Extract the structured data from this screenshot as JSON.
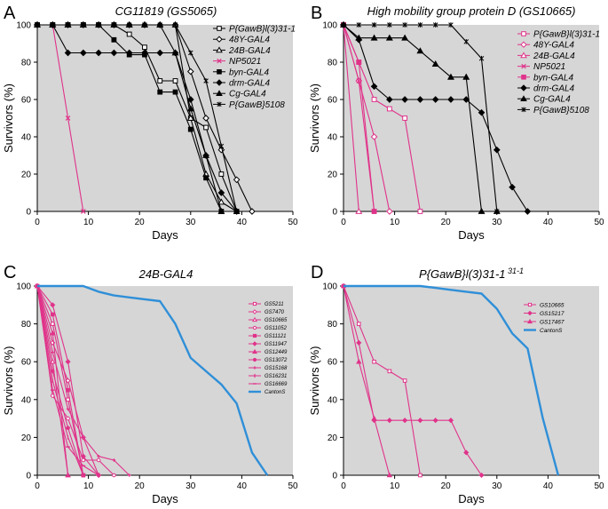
{
  "chart_data": [
    {
      "type": "line",
      "panel_letter": "A",
      "title": "CG11819 (GS5065)",
      "xlabel": "Days",
      "ylabel": "Survivors (%)",
      "xlim": [
        0,
        50
      ],
      "ylim": [
        0,
        100
      ],
      "x_ticks": [
        0,
        10,
        20,
        30,
        40,
        50
      ],
      "y_ticks": [
        0,
        20,
        40,
        60,
        80,
        100
      ],
      "legend": "top-right",
      "series": [
        {
          "name": "P{GawB}l(3)31-1",
          "color": "#000000",
          "marker": "square-open",
          "x": [
            0,
            3,
            6,
            9,
            12,
            15,
            18,
            21,
            24,
            27,
            30,
            33,
            36,
            39
          ],
          "y": [
            100,
            100,
            100,
            100,
            100,
            100,
            95,
            88,
            70,
            70,
            50,
            45,
            20,
            0
          ]
        },
        {
          "name": "48Y-GAL4",
          "color": "#000000",
          "marker": "diamond-open",
          "x": [
            0,
            3,
            6,
            9,
            12,
            15,
            18,
            21,
            24,
            27,
            30,
            33,
            36,
            39,
            42
          ],
          "y": [
            100,
            100,
            100,
            100,
            100,
            100,
            100,
            100,
            100,
            100,
            75,
            50,
            33,
            17,
            0
          ]
        },
        {
          "name": "24B-GAL4",
          "color": "#000000",
          "marker": "triangle-open",
          "x": [
            0,
            3,
            6,
            9,
            12,
            15,
            18,
            21,
            24,
            27,
            30,
            33,
            36,
            39
          ],
          "y": [
            100,
            100,
            100,
            100,
            100,
            100,
            100,
            100,
            100,
            100,
            50,
            20,
            5,
            0
          ]
        },
        {
          "name": "NP5021",
          "color": "#e0338a",
          "marker": "x",
          "x": [
            0,
            3,
            6,
            9
          ],
          "y": [
            100,
            100,
            50,
            0
          ]
        },
        {
          "name": "byn-GAL4",
          "color": "#000000",
          "marker": "square-filled",
          "x": [
            0,
            3,
            6,
            9,
            12,
            15,
            18,
            21,
            24,
            27,
            30,
            33,
            36
          ],
          "y": [
            100,
            100,
            100,
            100,
            100,
            92,
            84,
            84,
            64,
            64,
            44,
            18,
            0
          ]
        },
        {
          "name": "drm-GAL4",
          "color": "#000000",
          "marker": "diamond-filled",
          "x": [
            0,
            3,
            6,
            9,
            12,
            15,
            18,
            21,
            24,
            27,
            30,
            33,
            36,
            39
          ],
          "y": [
            100,
            100,
            85,
            85,
            85,
            85,
            85,
            85,
            85,
            85,
            60,
            30,
            10,
            0
          ]
        },
        {
          "name": "Cg-GAL4",
          "color": "#000000",
          "marker": "triangle-filled",
          "x": [
            0,
            3,
            6,
            9,
            12,
            15,
            18,
            21,
            24,
            27,
            30,
            33,
            36
          ],
          "y": [
            100,
            100,
            100,
            100,
            100,
            100,
            100,
            100,
            100,
            85,
            55,
            30,
            0
          ]
        },
        {
          "name": "P{GawB}5108",
          "color": "#000000",
          "marker": "asterisk",
          "x": [
            0,
            3,
            6,
            9,
            12,
            15,
            18,
            21,
            24,
            27,
            30,
            33,
            36,
            39
          ],
          "y": [
            100,
            100,
            100,
            100,
            100,
            100,
            100,
            100,
            100,
            100,
            85,
            70,
            35,
            0
          ]
        }
      ]
    },
    {
      "type": "line",
      "panel_letter": "B",
      "title": "High mobility group protein D (GS10665)",
      "xlabel": "Days",
      "ylabel": "Survivors (%)",
      "xlim": [
        0,
        50
      ],
      "ylim": [
        0,
        100
      ],
      "x_ticks": [
        0,
        10,
        20,
        30,
        40,
        50
      ],
      "y_ticks": [
        0,
        20,
        40,
        60,
        80,
        100
      ],
      "legend": "top-right",
      "series": [
        {
          "name": "P{GawB}l(3)31-1",
          "color": "#e0338a",
          "marker": "square-open",
          "x": [
            0,
            3,
            6,
            9,
            12,
            15
          ],
          "y": [
            100,
            80,
            60,
            55,
            50,
            0
          ]
        },
        {
          "name": "48Y-GAL4",
          "color": "#e0338a",
          "marker": "diamond-open",
          "x": [
            0,
            3,
            6,
            9
          ],
          "y": [
            100,
            70,
            40,
            0
          ]
        },
        {
          "name": "24B-GAL4",
          "color": "#e0338a",
          "marker": "triangle-open",
          "x": [
            0,
            3
          ],
          "y": [
            100,
            0
          ]
        },
        {
          "name": "NP5021",
          "color": "#e0338a",
          "marker": "x",
          "x": [
            0,
            3,
            6
          ],
          "y": [
            100,
            70,
            0
          ]
        },
        {
          "name": "byn-GAL4",
          "color": "#e0338a",
          "marker": "square-filled",
          "x": [
            0,
            3,
            6
          ],
          "y": [
            100,
            80,
            0
          ]
        },
        {
          "name": "drm-GAL4",
          "color": "#000000",
          "marker": "diamond-filled",
          "x": [
            0,
            3,
            6,
            9,
            12,
            15,
            18,
            21,
            24,
            27,
            30,
            33,
            36
          ],
          "y": [
            100,
            92,
            67,
            60,
            60,
            60,
            60,
            60,
            60,
            53,
            33,
            13,
            0
          ]
        },
        {
          "name": "Cg-GAL4",
          "color": "#000000",
          "marker": "triangle-filled",
          "x": [
            0,
            3,
            6,
            9,
            12,
            15,
            18,
            21,
            24,
            27,
            30
          ],
          "y": [
            100,
            93,
            93,
            93,
            93,
            86,
            79,
            72,
            72,
            0,
            0
          ]
        },
        {
          "name": "P{GawB}5108",
          "color": "#000000",
          "marker": "asterisk",
          "x": [
            0,
            3,
            6,
            9,
            12,
            15,
            18,
            21,
            24,
            27,
            30
          ],
          "y": [
            100,
            100,
            100,
            100,
            100,
            100,
            100,
            100,
            91,
            82,
            0
          ]
        }
      ]
    },
    {
      "type": "line",
      "panel_letter": "C",
      "title": "24B-GAL4",
      "xlabel": "Days",
      "ylabel": "Survivors (%)",
      "xlim": [
        0,
        50
      ],
      "ylim": [
        0,
        100
      ],
      "x_ticks": [
        0,
        10,
        20,
        30,
        40,
        50
      ],
      "y_ticks": [
        0,
        20,
        40,
        60,
        80,
        100
      ],
      "legend": "top-right",
      "series": [
        {
          "name": "GS5211",
          "color": "#e0338a",
          "marker": "square-open",
          "x": [
            0,
            3,
            6,
            9
          ],
          "y": [
            100,
            80,
            40,
            0
          ]
        },
        {
          "name": "GS7470",
          "color": "#e0338a",
          "marker": "diamond-open",
          "x": [
            0,
            3,
            6,
            9,
            12
          ],
          "y": [
            100,
            70,
            50,
            20,
            0
          ]
        },
        {
          "name": "GS10665",
          "color": "#e0338a",
          "marker": "triangle-open",
          "x": [
            0,
            3,
            6
          ],
          "y": [
            100,
            60,
            0
          ]
        },
        {
          "name": "GS11052",
          "color": "#e0338a",
          "marker": "circle-open",
          "x": [
            0,
            3,
            6,
            9,
            12,
            15
          ],
          "y": [
            100,
            42,
            30,
            8,
            8,
            0
          ]
        },
        {
          "name": "GS11121",
          "color": "#e0338a",
          "marker": "square-filled",
          "x": [
            0,
            3,
            6,
            9
          ],
          "y": [
            100,
            85,
            45,
            0
          ]
        },
        {
          "name": "GS11947",
          "color": "#e0338a",
          "marker": "diamond-filled",
          "x": [
            0,
            3,
            6,
            9,
            12
          ],
          "y": [
            100,
            90,
            60,
            10,
            0
          ]
        },
        {
          "name": "GS12449",
          "color": "#e0338a",
          "marker": "triangle-filled",
          "x": [
            0,
            3,
            6
          ],
          "y": [
            100,
            75,
            0
          ]
        },
        {
          "name": "GS13072",
          "color": "#e0338a",
          "marker": "circle-filled",
          "x": [
            0,
            3,
            6,
            9
          ],
          "y": [
            100,
            55,
            25,
            0
          ]
        },
        {
          "name": "GS15168",
          "color": "#e0338a",
          "marker": "plus",
          "x": [
            0,
            3,
            6,
            9,
            12,
            15,
            18
          ],
          "y": [
            100,
            65,
            35,
            20,
            10,
            8,
            0
          ]
        },
        {
          "name": "GS16231",
          "color": "#e0338a",
          "marker": "bar",
          "x": [
            0,
            3,
            6,
            9
          ],
          "y": [
            100,
            50,
            20,
            0
          ]
        },
        {
          "name": "GS16669",
          "color": "#e0338a",
          "marker": "dash",
          "x": [
            0,
            3,
            6,
            9,
            12
          ],
          "y": [
            100,
            45,
            15,
            5,
            0
          ]
        },
        {
          "name": "CantonS",
          "color": "#2f8fd8",
          "marker": "none",
          "x": [
            0,
            6,
            9,
            12,
            15,
            18,
            21,
            24,
            27,
            30,
            33,
            36,
            39,
            42,
            45
          ],
          "y": [
            100,
            100,
            100,
            97,
            95,
            94,
            93,
            92,
            80,
            62,
            55,
            48,
            38,
            12,
            0
          ]
        }
      ]
    },
    {
      "type": "line",
      "panel_letter": "D",
      "title": "P{GawB}l(3)31-1 31-1",
      "xlabel": "Days",
      "ylabel": "Survivors (%)",
      "xlim": [
        0,
        50
      ],
      "ylim": [
        0,
        100
      ],
      "x_ticks": [
        0,
        10,
        20,
        30,
        40,
        50
      ],
      "y_ticks": [
        0,
        20,
        40,
        60,
        80,
        100
      ],
      "legend": "top-right",
      "series": [
        {
          "name": "GS10665",
          "color": "#e0338a",
          "marker": "square-open",
          "x": [
            0,
            3,
            6,
            9,
            12,
            15
          ],
          "y": [
            100,
            80,
            60,
            55,
            50,
            0
          ]
        },
        {
          "name": "GS15217",
          "color": "#e0338a",
          "marker": "diamond-filled",
          "x": [
            0,
            3,
            6,
            9,
            12,
            15,
            18,
            21,
            24,
            27
          ],
          "y": [
            100,
            70,
            29,
            29,
            29,
            29,
            29,
            29,
            12,
            0
          ]
        },
        {
          "name": "GS17467",
          "color": "#e0338a",
          "marker": "triangle-filled",
          "x": [
            0,
            3,
            6,
            9
          ],
          "y": [
            100,
            60,
            30,
            0
          ]
        },
        {
          "name": "CantonS",
          "color": "#2f8fd8",
          "marker": "none",
          "x": [
            0,
            9,
            12,
            15,
            18,
            21,
            24,
            27,
            30,
            33,
            36,
            39,
            42
          ],
          "y": [
            100,
            100,
            100,
            100,
            99,
            98,
            97,
            96,
            88,
            75,
            67,
            30,
            0
          ]
        }
      ]
    }
  ]
}
